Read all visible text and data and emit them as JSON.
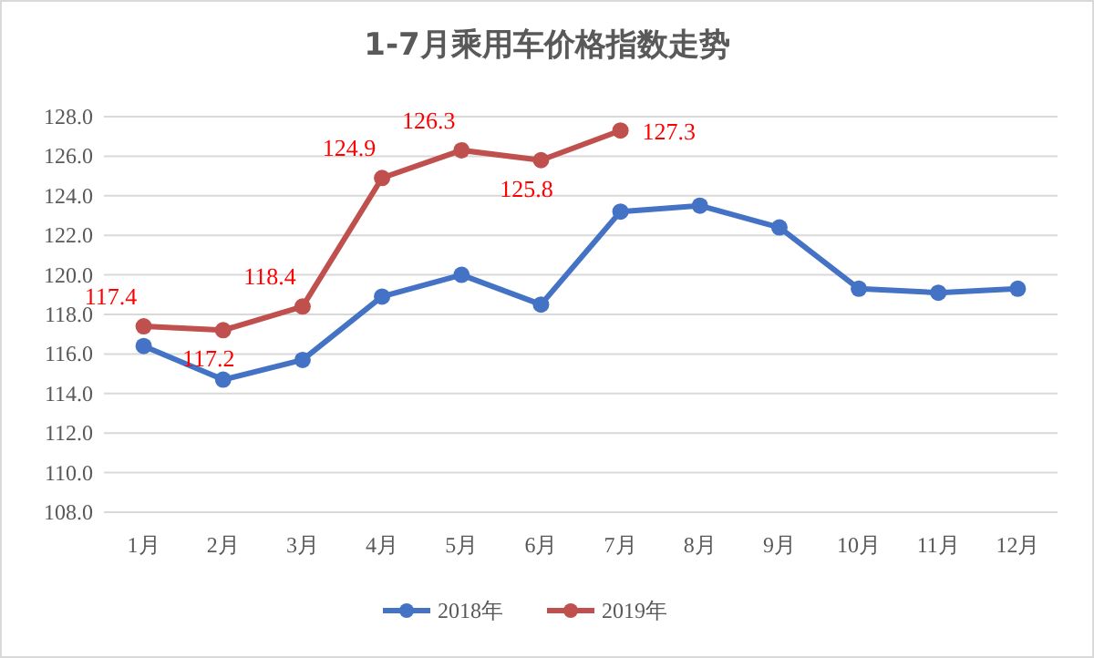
{
  "chart_data": {
    "type": "line",
    "title": "1-7月乘用车价格指数走势",
    "categories": [
      "1月",
      "2月",
      "3月",
      "4月",
      "5月",
      "6月",
      "7月",
      "8月",
      "9月",
      "10月",
      "11月",
      "12月"
    ],
    "series": [
      {
        "name": "2018年",
        "color": "#4472c4",
        "values": [
          116.4,
          114.7,
          115.7,
          118.9,
          120.0,
          118.5,
          123.2,
          123.5,
          122.4,
          119.3,
          119.1,
          119.3
        ]
      },
      {
        "name": "2019年",
        "color": "#c0504d",
        "values": [
          117.4,
          117.2,
          118.4,
          124.9,
          126.3,
          125.8,
          127.3,
          null,
          null,
          null,
          null,
          null
        ],
        "value_labels": [
          "117.4",
          "117.2",
          "118.4",
          "124.9",
          "126.3",
          "125.8",
          "127.3",
          null,
          null,
          null,
          null,
          null
        ]
      }
    ],
    "ylim": [
      108,
      128
    ],
    "yticks": [
      {
        "value": 108,
        "label": "108.0"
      },
      {
        "value": 110,
        "label": "110.0"
      },
      {
        "value": 112,
        "label": "112.0"
      },
      {
        "value": 114,
        "label": "114.0"
      },
      {
        "value": 116,
        "label": "116.0"
      },
      {
        "value": 118,
        "label": "118.0"
      },
      {
        "value": 120,
        "label": "120.0"
      },
      {
        "value": 122,
        "label": "122.0"
      },
      {
        "value": 124,
        "label": "124.0"
      },
      {
        "value": 126,
        "label": "126.0"
      },
      {
        "value": 128,
        "label": "128.0"
      }
    ],
    "grid": "y",
    "legend": "bottom",
    "marker": "circle",
    "line_style": "solid"
  }
}
